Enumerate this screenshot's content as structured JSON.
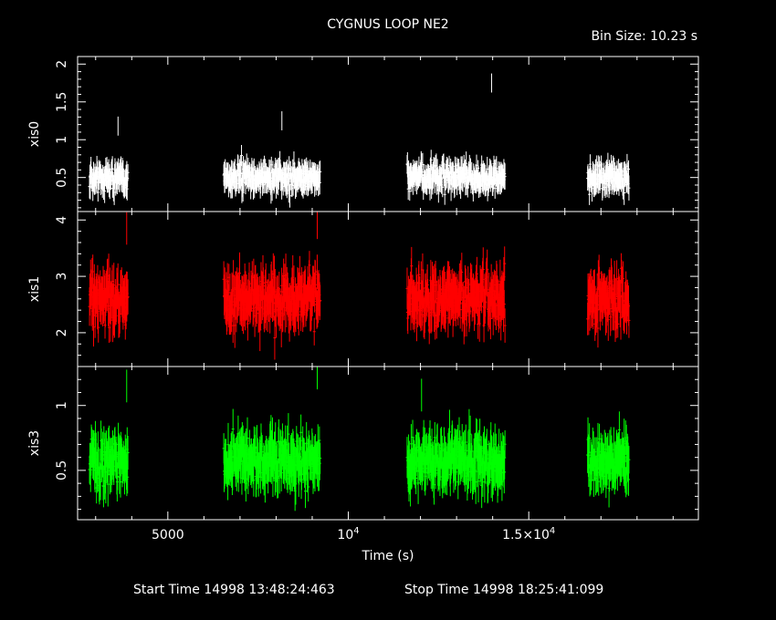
{
  "title": "CYGNUS LOOP NE2",
  "bin_label": "Bin Size: 10.23 s",
  "x_label": "Time (s)",
  "start_label": "Start Time 14998 13:48:24:463",
  "stop_label": "Stop Time 14998 18:25:41:099",
  "colors": {
    "frame": "#ffffff",
    "xis0": "#ffffff",
    "xis1": "#ff0000",
    "xis3": "#00ff00"
  },
  "chart_data": {
    "type": "scatter",
    "x_axis": {
      "range": [
        2500,
        19700
      ],
      "ticks": [
        {
          "value": 5000,
          "base": "5000",
          "exp": ""
        },
        {
          "value": 10000,
          "base": "10",
          "exp": "4"
        },
        {
          "value": 15000,
          "base": "1.5×10",
          "exp": "4"
        }
      ]
    },
    "segments": [
      [
        2830,
        3900
      ],
      [
        6550,
        9230
      ],
      [
        11630,
        14350
      ],
      [
        16630,
        17780
      ]
    ],
    "panels": [
      {
        "name": "xis0",
        "ylim": [
          0.05,
          2.1
        ],
        "ticks": [
          {
            "v": 0.5,
            "t": "0.5"
          },
          {
            "v": 1,
            "t": "1"
          },
          {
            "v": 1.5,
            "t": "1.5"
          },
          {
            "v": 2,
            "t": "2"
          }
        ],
        "mean": 0.5,
        "spread": 0.14,
        "err": 0.14,
        "spikes": [
          {
            "x": 13970,
            "y": 1.75
          },
          {
            "x": 8160,
            "y": 1.25
          },
          {
            "x": 3620,
            "y": 1.18
          }
        ]
      },
      {
        "name": "xis1",
        "ylim": [
          1.4,
          4.15
        ],
        "ticks": [
          {
            "v": 2,
            "t": "2"
          },
          {
            "v": 3,
            "t": "3"
          },
          {
            "v": 4,
            "t": "4"
          }
        ],
        "mean": 2.6,
        "spread": 0.35,
        "err": 0.32,
        "spikes": [
          {
            "x": 3860,
            "y": 3.85
          },
          {
            "x": 9140,
            "y": 3.95
          }
        ]
      },
      {
        "name": "xis3",
        "ylim": [
          0.12,
          1.3
        ],
        "ticks": [
          {
            "v": 0.5,
            "t": "0.5"
          },
          {
            "v": 1,
            "t": "1"
          }
        ],
        "mean": 0.57,
        "spread": 0.15,
        "err": 0.14,
        "spikes": [
          {
            "x": 3860,
            "y": 1.15
          },
          {
            "x": 9140,
            "y": 1.25
          },
          {
            "x": 12030,
            "y": 1.08
          }
        ]
      }
    ]
  }
}
